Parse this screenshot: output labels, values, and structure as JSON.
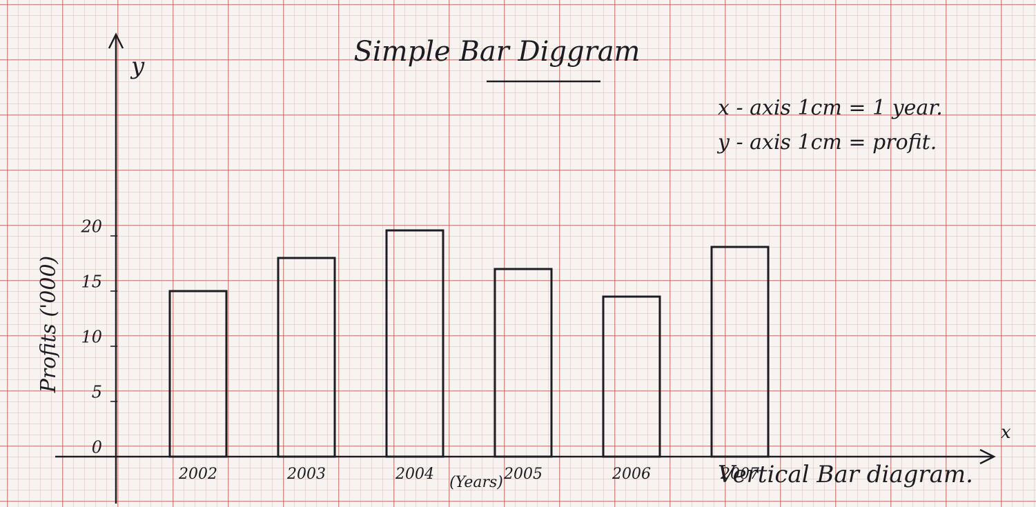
{
  "chart_data": {
    "type": "bar",
    "title": "Simple Bar Diggram",
    "subtitle": "Vertical Bar diagram.",
    "x_label": "(Years)",
    "y_label": "Profits ('000)",
    "x_axis_letter": "x",
    "y_axis_letter": "y",
    "annotations": [
      "x - axis 1cm = 1 year.",
      "y - axis 1cm = profit."
    ],
    "categories": [
      "2002",
      "2003",
      "2004",
      "2005",
      "2006",
      "2007"
    ],
    "values": [
      15,
      18,
      20.5,
      17,
      14.5,
      19
    ],
    "color": "#1c1c22",
    "ylim": [
      0,
      36
    ],
    "yticks": [
      0,
      5,
      10,
      15,
      20
    ],
    "grid": true
  }
}
